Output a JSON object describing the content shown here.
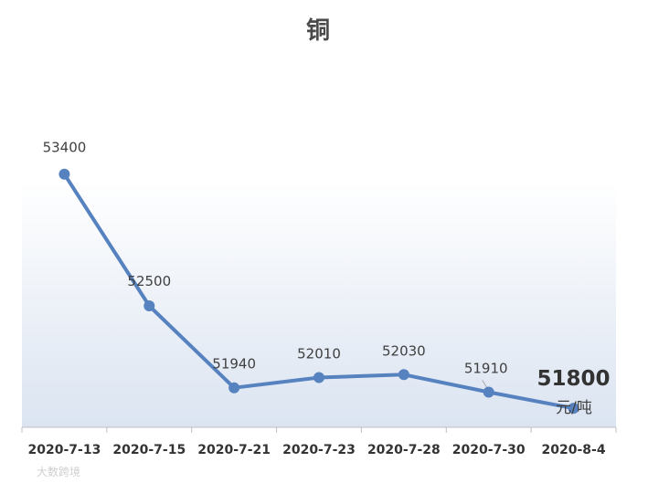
{
  "chart_data": {
    "type": "line",
    "title": "铜",
    "unit": "元/吨",
    "categories": [
      "2020-7-13",
      "2020-7-15",
      "2020-7-21",
      "2020-7-23",
      "2020-7-28",
      "2020-7-30",
      "2020-8-4"
    ],
    "series": [
      {
        "values": [
          53400,
          52500,
          51940,
          52010,
          52030,
          51910,
          51800
        ],
        "labels": [
          "53400",
          "52500",
          "51940",
          "52010",
          "52030",
          "51910",
          "51800"
        ]
      }
    ],
    "highlight_last_label": true,
    "ylim": [
      51670,
      54590
    ],
    "grid": false,
    "legend": "none",
    "colors": {
      "line": "#5682c0",
      "gradient_bottom": "#dbe4f1"
    }
  },
  "watermark": "大数跨境"
}
